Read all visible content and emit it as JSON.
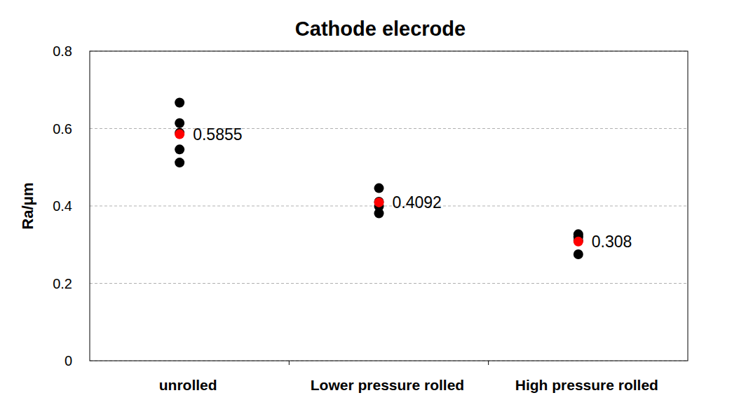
{
  "chart_data": {
    "type": "scatter",
    "title": "Cathode elecrode",
    "y_label": "Ra/μm",
    "categories": [
      "unrolled",
      "Lower pressure rolled",
      "High pressure rolled"
    ],
    "series": [
      {
        "color": "#000000",
        "values": [
          [
            0.667,
            0.614,
            0.589,
            0.546,
            0.512
          ],
          [
            0.446,
            0.411,
            0.399,
            0.381
          ],
          [
            0.327,
            0.32,
            0.31,
            0.275
          ]
        ]
      },
      {
        "color": "#ff0000",
        "values": [
          0.5855,
          0.4092,
          0.308
        ],
        "data_labels": true
      }
    ],
    "ylim": [
      0,
      0.8
    ],
    "yticks": [
      0,
      0.2,
      0.4,
      0.6,
      0.8
    ],
    "grid": true
  }
}
